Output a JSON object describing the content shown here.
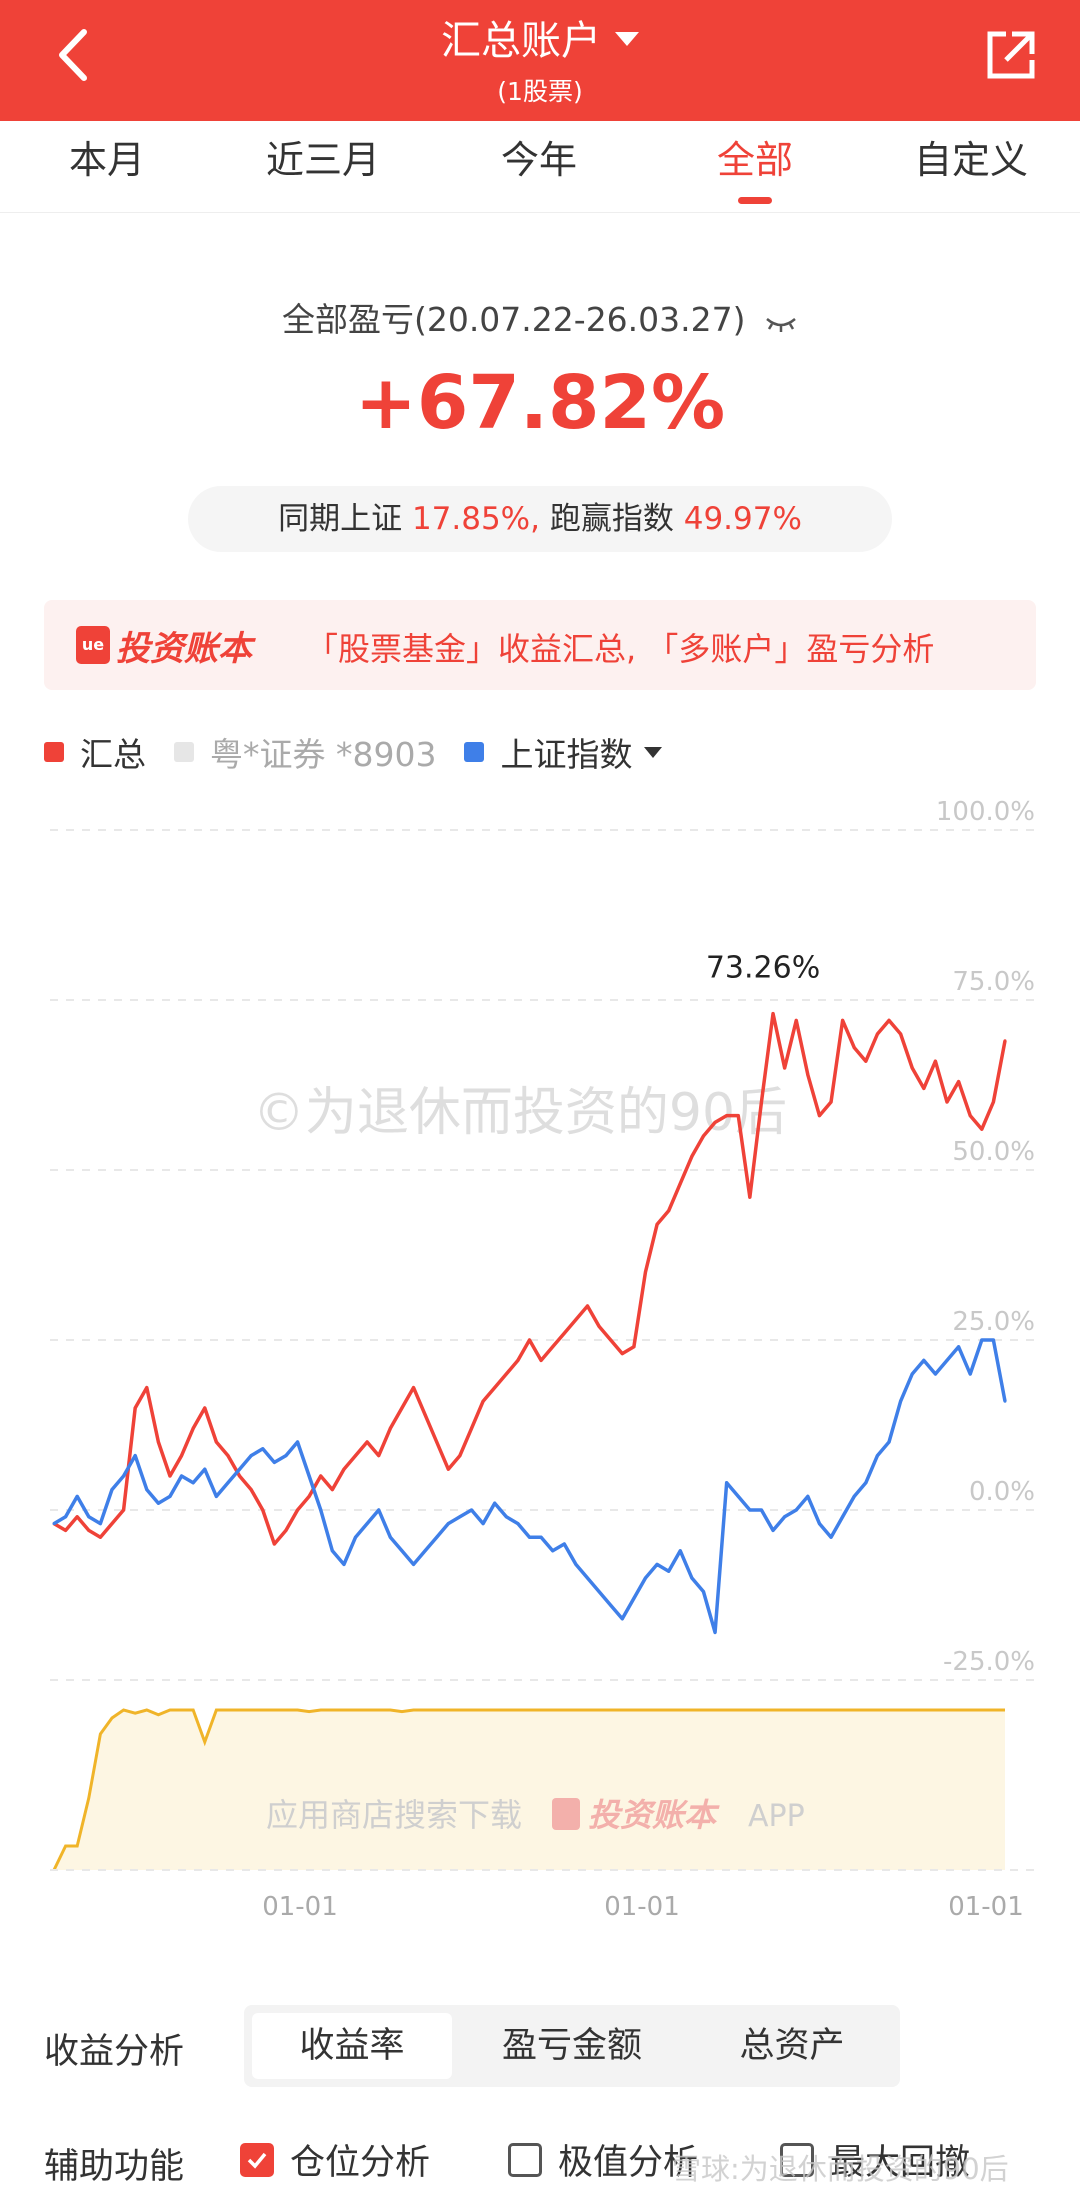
{
  "header": {
    "title": "汇总账户",
    "subtitle": "(1股票)"
  },
  "tabs": [
    {
      "label": "本月",
      "active": false
    },
    {
      "label": "近三月",
      "active": false
    },
    {
      "label": "今年",
      "active": false
    },
    {
      "label": "全部",
      "active": true
    },
    {
      "label": "自定义",
      "active": false
    }
  ],
  "summary": {
    "label": "全部盈亏(20.07.22-26.03.27)",
    "total_return": "+67.82%",
    "benchmark_prefix": "同期上证",
    "benchmark_value": "17.85%,",
    "beat_prefix": "跑赢指数",
    "beat_value": "49.97%"
  },
  "promo": {
    "logo_badge": "ue",
    "logo_text": "投资账本",
    "text": "「股票基金」收益汇总, 「多账户」盈亏分析"
  },
  "legend": [
    {
      "label": "汇总",
      "color": "#ef4238"
    },
    {
      "label": "粤*证券 *8903",
      "color": "#e6e6e6"
    },
    {
      "label": "上证指数",
      "color": "#3f7fe8",
      "dropdown": true
    }
  ],
  "chart_data": {
    "type": "line",
    "y_ticks": [
      "100.0%",
      "75.0%",
      "50.0%",
      "25.0%",
      "0.0%",
      "-25.0%"
    ],
    "ylim": [
      -25,
      100
    ],
    "x_ticks": [
      "01-01",
      "01-01",
      "01-01"
    ],
    "peak_label": "73.26%",
    "watermark": "©为退休而投资的90后",
    "lower_watermark": "应用商店搜索下载",
    "lower_watermark_logo": "投资账本",
    "lower_watermark_suffix": "APP",
    "series": [
      {
        "name": "汇总",
        "color": "#ef4238",
        "values": [
          -2,
          -3,
          -1,
          -3,
          -4,
          -2,
          0,
          15,
          18,
          10,
          5,
          8,
          12,
          15,
          10,
          8,
          5,
          3,
          0,
          -5,
          -3,
          0,
          2,
          5,
          3,
          6,
          8,
          10,
          8,
          12,
          15,
          18,
          14,
          10,
          6,
          8,
          12,
          16,
          18,
          20,
          22,
          25,
          22,
          24,
          26,
          28,
          30,
          27,
          25,
          23,
          24,
          35,
          42,
          44,
          48,
          52,
          55,
          57,
          58,
          58,
          46,
          60,
          73,
          65,
          72,
          64,
          58,
          60,
          72,
          68,
          66,
          70,
          72,
          70,
          65,
          62,
          66,
          60,
          63,
          58,
          56,
          60,
          69
        ]
      },
      {
        "name": "上证指数",
        "color": "#3f7fe8",
        "values": [
          -2,
          -1,
          2,
          -1,
          -2,
          3,
          5,
          8,
          3,
          1,
          2,
          5,
          4,
          6,
          2,
          4,
          6,
          8,
          9,
          7,
          8,
          10,
          5,
          0,
          -6,
          -8,
          -4,
          -2,
          0,
          -4,
          -6,
          -8,
          -6,
          -4,
          -2,
          -1,
          0,
          -2,
          1,
          -1,
          -2,
          -4,
          -4,
          -6,
          -5,
          -8,
          -10,
          -12,
          -14,
          -16,
          -13,
          -10,
          -8,
          -9,
          -6,
          -10,
          -12,
          -18,
          4,
          2,
          0,
          0,
          -3,
          -1,
          0,
          2,
          -2,
          -4,
          -1,
          2,
          4,
          8,
          10,
          16,
          20,
          22,
          20,
          22,
          24,
          20,
          25,
          25,
          16
        ]
      }
    ],
    "position_series": {
      "name": "仓位",
      "color": "#f0b429",
      "fill": "#fdf6e3",
      "values": [
        0,
        0.15,
        0.15,
        0.45,
        0.85,
        0.95,
        1,
        0.98,
        1,
        0.97,
        1,
        1,
        1,
        0.8,
        1,
        1,
        1,
        1,
        1,
        1,
        1,
        1,
        0.99,
        1,
        1,
        1,
        1,
        1,
        1,
        1,
        0.99,
        1,
        1,
        1,
        1,
        1,
        1,
        1,
        1,
        1,
        1,
        1,
        1,
        1,
        1,
        1,
        1,
        1,
        1,
        1,
        1,
        1,
        1,
        1,
        1,
        1,
        1,
        1,
        1,
        1,
        1,
        1,
        1,
        1,
        1,
        1,
        1,
        1,
        1,
        1,
        1,
        1,
        1,
        1,
        1,
        1,
        1,
        1,
        1,
        1,
        1,
        1,
        1
      ]
    }
  },
  "analysis": {
    "label": "收益分析",
    "options": [
      {
        "label": "收益率",
        "active": true
      },
      {
        "label": "盈亏金额",
        "active": false
      },
      {
        "label": "总资产",
        "active": false
      }
    ]
  },
  "aux": {
    "label": "辅助功能",
    "items": [
      {
        "label": "仓位分析",
        "checked": true
      },
      {
        "label": "极值分析",
        "checked": false
      },
      {
        "label": "最大回撤",
        "checked": false
      }
    ],
    "watermark": "雪球:为退休而投资的90后"
  },
  "colors": {
    "brand": "#ef4238",
    "index_line": "#3f7fe8",
    "position_line": "#f0b429"
  }
}
